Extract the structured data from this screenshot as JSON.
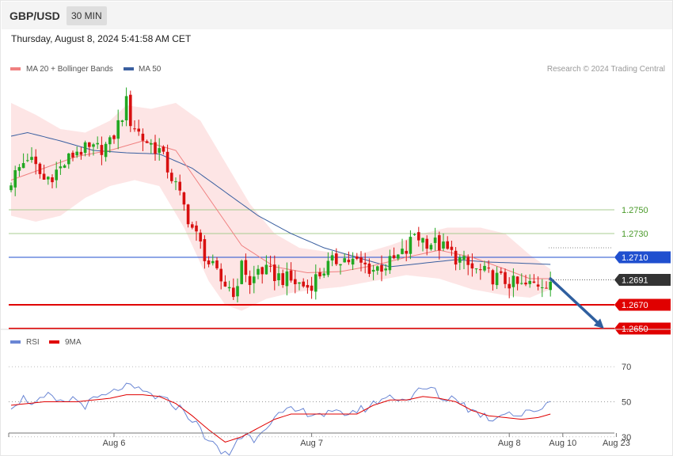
{
  "header": {
    "symbol": "GBP/USD",
    "timeframe": "30 MIN",
    "datetime": "Thursday, August 8, 2024 5:41:58 AM CET"
  },
  "colors": {
    "ma20": "#f08080",
    "band_fill": "#fde0e0",
    "ma50": "#3a5fa0",
    "up_candle": "#22a822",
    "down_candle": "#d81010",
    "resistance_green": "#a8cc90",
    "pivot_blue": "#1f4fcf",
    "support_red": "#e00000",
    "current_price": "#333333",
    "arrow": "#2f5f9f",
    "rsi": "#6a86d4",
    "rsi_ma": "#e00000"
  },
  "chart_data": [
    {
      "type": "candlestick",
      "title": "",
      "legend": {
        "placement": "top-left",
        "entries": [
          {
            "name": "MA 20 + Bollinger Bands",
            "color": "#f08080"
          },
          {
            "name": "MA 50",
            "color": "#3a5fa0"
          }
        ]
      },
      "credit": "Research © 2024 Trading Central",
      "x_labels": [
        {
          "label": "Aug 6",
          "bar": 25
        },
        {
          "label": "Aug 7",
          "bar": 73
        },
        {
          "label": "Aug 8",
          "bar": 121
        },
        {
          "label": "Aug 10",
          "bar": 134
        },
        {
          "label": "Aug 23",
          "bar": 147
        }
      ],
      "ylim": [
        1.264,
        1.289
      ],
      "levels": [
        {
          "value": 1.275,
          "label": "1.2750",
          "kind": "resistance"
        },
        {
          "value": 1.273,
          "label": "1.2730",
          "kind": "resistance"
        },
        {
          "value": 1.271,
          "label": "1.2710",
          "kind": "pivot"
        },
        {
          "value": 1.2691,
          "label": "1.2691",
          "kind": "current"
        },
        {
          "value": 1.267,
          "label": "1.2670",
          "kind": "support"
        },
        {
          "value": 1.265,
          "label": "1.2650",
          "kind": "support"
        }
      ],
      "forecast_arrow": {
        "from_bar": 131,
        "from_value": 1.2692,
        "to_bar": 144,
        "to_value": 1.265
      },
      "close_anchors": [
        [
          0,
          1.2775
        ],
        [
          4,
          1.2795
        ],
        [
          8,
          1.2775
        ],
        [
          12,
          1.2785
        ],
        [
          16,
          1.28
        ],
        [
          20,
          1.28
        ],
        [
          24,
          1.2805
        ],
        [
          27,
          1.283
        ],
        [
          28,
          1.284
        ],
        [
          29,
          1.2825
        ],
        [
          32,
          1.281
        ],
        [
          36,
          1.28
        ],
        [
          40,
          1.277
        ],
        [
          44,
          1.2735
        ],
        [
          48,
          1.2705
        ],
        [
          51,
          1.269
        ],
        [
          55,
          1.268
        ],
        [
          56,
          1.271
        ],
        [
          58,
          1.2685
        ],
        [
          60,
          1.27
        ],
        [
          64,
          1.2695
        ],
        [
          68,
          1.269
        ],
        [
          72,
          1.2685
        ],
        [
          76,
          1.27
        ],
        [
          80,
          1.271
        ],
        [
          84,
          1.2705
        ],
        [
          88,
          1.27
        ],
        [
          92,
          1.2705
        ],
        [
          96,
          1.2715
        ],
        [
          98,
          1.273
        ],
        [
          100,
          1.2725
        ],
        [
          104,
          1.272
        ],
        [
          108,
          1.271
        ],
        [
          112,
          1.27
        ],
        [
          116,
          1.2695
        ],
        [
          120,
          1.269
        ],
        [
          124,
          1.2685
        ],
        [
          128,
          1.2688
        ],
        [
          131,
          1.2691
        ]
      ],
      "ma20_anchors": [
        [
          0,
          1.2775
        ],
        [
          8,
          1.2785
        ],
        [
          16,
          1.2795
        ],
        [
          24,
          1.28
        ],
        [
          32,
          1.2808
        ],
        [
          40,
          1.28
        ],
        [
          48,
          1.276
        ],
        [
          56,
          1.272
        ],
        [
          64,
          1.2702
        ],
        [
          72,
          1.2697
        ],
        [
          80,
          1.2698
        ],
        [
          88,
          1.2703
        ],
        [
          96,
          1.271
        ],
        [
          104,
          1.2716
        ],
        [
          112,
          1.271
        ],
        [
          120,
          1.27
        ],
        [
          126,
          1.2692
        ],
        [
          131,
          1.2692
        ]
      ],
      "ma50_anchors": [
        [
          0,
          1.2812
        ],
        [
          4,
          1.2815
        ],
        [
          12,
          1.2808
        ],
        [
          20,
          1.28
        ],
        [
          28,
          1.2798
        ],
        [
          36,
          1.2797
        ],
        [
          44,
          1.2785
        ],
        [
          52,
          1.2765
        ],
        [
          60,
          1.2745
        ],
        [
          68,
          1.273
        ],
        [
          76,
          1.2718
        ],
        [
          84,
          1.271
        ],
        [
          92,
          1.2702
        ],
        [
          100,
          1.2705
        ],
        [
          108,
          1.2708
        ],
        [
          116,
          1.2706
        ],
        [
          124,
          1.2705
        ],
        [
          131,
          1.2704
        ]
      ],
      "band_upper_anchors": [
        [
          0,
          1.284
        ],
        [
          6,
          1.283
        ],
        [
          12,
          1.2818
        ],
        [
          18,
          1.2815
        ],
        [
          24,
          1.2825
        ],
        [
          28,
          1.2838
        ],
        [
          34,
          1.2835
        ],
        [
          40,
          1.284
        ],
        [
          46,
          1.2825
        ],
        [
          52,
          1.279
        ],
        [
          58,
          1.2755
        ],
        [
          64,
          1.273
        ],
        [
          70,
          1.2718
        ],
        [
          76,
          1.2715
        ],
        [
          84,
          1.2712
        ],
        [
          92,
          1.272
        ],
        [
          100,
          1.273
        ],
        [
          106,
          1.2735
        ],
        [
          114,
          1.2735
        ],
        [
          120,
          1.273
        ],
        [
          126,
          1.2712
        ],
        [
          131,
          1.27
        ]
      ],
      "band_lower_anchors": [
        [
          0,
          1.2745
        ],
        [
          6,
          1.274
        ],
        [
          12,
          1.2745
        ],
        [
          18,
          1.276
        ],
        [
          24,
          1.277
        ],
        [
          30,
          1.2775
        ],
        [
          36,
          1.277
        ],
        [
          42,
          1.2735
        ],
        [
          48,
          1.269
        ],
        [
          52,
          1.267
        ],
        [
          56,
          1.2665
        ],
        [
          62,
          1.2675
        ],
        [
          68,
          1.268
        ],
        [
          74,
          1.2683
        ],
        [
          80,
          1.2685
        ],
        [
          88,
          1.269
        ],
        [
          96,
          1.2695
        ],
        [
          104,
          1.2692
        ],
        [
          112,
          1.2683
        ],
        [
          120,
          1.2678
        ],
        [
          126,
          1.2676
        ],
        [
          131,
          1.2683
        ]
      ]
    },
    {
      "type": "line",
      "title": "",
      "legend": {
        "placement": "top-left",
        "entries": [
          {
            "name": "RSI",
            "color": "#6a86d4"
          },
          {
            "name": "9MA",
            "color": "#e00000"
          }
        ]
      },
      "ylim": [
        15,
        85
      ],
      "y_ticks": [
        {
          "value": 70,
          "label": "70"
        },
        {
          "value": 50,
          "label": "50"
        },
        {
          "value": 30,
          "label": "30"
        }
      ],
      "rsi_anchors": [
        [
          0,
          48
        ],
        [
          3,
          52
        ],
        [
          6,
          49
        ],
        [
          9,
          53
        ],
        [
          12,
          49
        ],
        [
          15,
          52
        ],
        [
          18,
          48
        ],
        [
          21,
          52
        ],
        [
          24,
          54
        ],
        [
          27,
          59
        ],
        [
          30,
          57
        ],
        [
          33,
          55
        ],
        [
          36,
          52
        ],
        [
          39,
          49
        ],
        [
          42,
          45
        ],
        [
          45,
          37
        ],
        [
          48,
          28
        ],
        [
          51,
          21
        ],
        [
          53,
          20
        ],
        [
          55,
          29
        ],
        [
          57,
          31
        ],
        [
          59,
          29
        ],
        [
          62,
          37
        ],
        [
          65,
          42
        ],
        [
          68,
          45
        ],
        [
          72,
          44
        ],
        [
          76,
          43
        ],
        [
          80,
          43
        ],
        [
          84,
          45
        ],
        [
          87,
          47
        ],
        [
          90,
          52
        ],
        [
          93,
          53
        ],
        [
          96,
          51
        ],
        [
          99,
          56
        ],
        [
          102,
          58
        ],
        [
          105,
          51
        ],
        [
          108,
          53
        ],
        [
          111,
          46
        ],
        [
          114,
          43
        ],
        [
          117,
          40
        ],
        [
          120,
          45
        ],
        [
          123,
          42
        ],
        [
          126,
          44
        ],
        [
          129,
          47
        ],
        [
          131,
          51
        ]
      ],
      "rsi_ma_anchors": [
        [
          0,
          48
        ],
        [
          8,
          50
        ],
        [
          16,
          50
        ],
        [
          24,
          52
        ],
        [
          28,
          54
        ],
        [
          32,
          54
        ],
        [
          36,
          53
        ],
        [
          40,
          49
        ],
        [
          44,
          42
        ],
        [
          48,
          34
        ],
        [
          52,
          27
        ],
        [
          56,
          30
        ],
        [
          60,
          35
        ],
        [
          64,
          40
        ],
        [
          68,
          43
        ],
        [
          76,
          43
        ],
        [
          84,
          43
        ],
        [
          88,
          48
        ],
        [
          92,
          51
        ],
        [
          96,
          51
        ],
        [
          100,
          53
        ],
        [
          104,
          52
        ],
        [
          108,
          50
        ],
        [
          112,
          45
        ],
        [
          116,
          42
        ],
        [
          120,
          41
        ],
        [
          124,
          40
        ],
        [
          128,
          41
        ],
        [
          131,
          43
        ]
      ]
    }
  ]
}
